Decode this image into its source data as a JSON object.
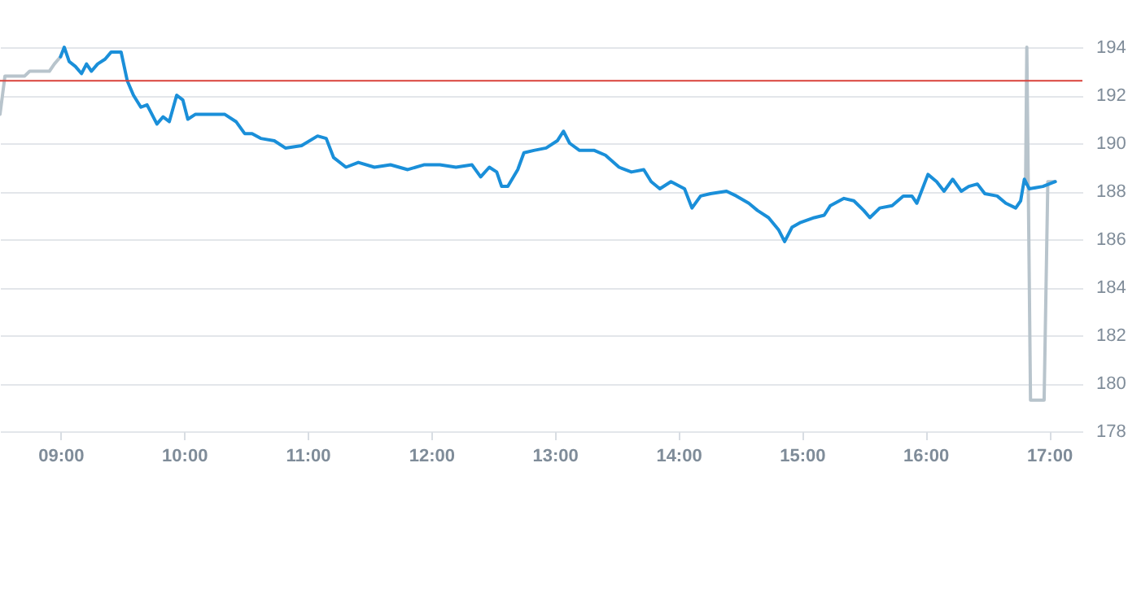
{
  "chart_data": {
    "type": "line",
    "xlim": [
      8.51,
      17.27
    ],
    "ylim": [
      178,
      194
    ],
    "xticks": [
      {
        "value": 9,
        "label": "09:00"
      },
      {
        "value": 10,
        "label": "10:00"
      },
      {
        "value": 11,
        "label": "11:00"
      },
      {
        "value": 12,
        "label": "12:00"
      },
      {
        "value": 13,
        "label": "13:00"
      },
      {
        "value": 14,
        "label": "14:00"
      },
      {
        "value": 15,
        "label": "15:00"
      },
      {
        "value": 16,
        "label": "16:00"
      },
      {
        "value": 17,
        "label": "17:00"
      }
    ],
    "yticks": [
      178,
      180,
      182,
      184,
      186,
      188,
      190,
      192,
      194
    ],
    "grid": "y",
    "marker": "none",
    "line_style": "solid",
    "ref_lines": [
      {
        "axis": "y",
        "value": 192.6,
        "color": "#d9413a"
      }
    ],
    "series": [
      {
        "color": "#b8c4cc",
        "x": [
          8.51,
          8.55,
          8.71,
          8.75,
          8.91,
          8.95,
          9.0
        ],
        "values": [
          191.2,
          192.8,
          192.8,
          193.0,
          193.0,
          193.3,
          193.6
        ]
      },
      {
        "color": "#b8c4cc",
        "x": [
          16.81,
          16.82,
          16.85,
          16.96,
          16.99,
          17.05
        ],
        "values": [
          188.3,
          194.0,
          179.3,
          179.3,
          188.4,
          188.4
        ]
      },
      {
        "color": "#1a8fd9",
        "x": [
          9.0,
          9.03,
          9.07,
          9.12,
          9.17,
          9.21,
          9.25,
          9.3,
          9.36,
          9.41,
          9.49,
          9.54,
          9.59,
          9.65,
          9.7,
          9.78,
          9.83,
          9.88,
          9.94,
          9.99,
          10.03,
          10.09,
          10.23,
          10.33,
          10.42,
          10.49,
          10.55,
          10.62,
          10.73,
          10.82,
          10.95,
          11.08,
          11.15,
          11.21,
          11.31,
          11.41,
          11.54,
          11.67,
          11.81,
          11.94,
          12.07,
          12.2,
          12.33,
          12.4,
          12.47,
          12.53,
          12.57,
          12.62,
          12.7,
          12.75,
          12.83,
          12.93,
          13.02,
          13.07,
          13.12,
          13.2,
          13.32,
          13.41,
          13.52,
          13.62,
          13.72,
          13.78,
          13.85,
          13.94,
          14.05,
          14.11,
          14.18,
          14.26,
          14.39,
          14.47,
          14.57,
          14.64,
          14.73,
          14.81,
          14.86,
          14.92,
          14.99,
          15.1,
          15.18,
          15.23,
          15.34,
          15.42,
          15.5,
          15.55,
          15.63,
          15.73,
          15.82,
          15.89,
          15.93,
          16.02,
          16.09,
          16.15,
          16.22,
          16.29,
          16.35,
          16.42,
          16.48,
          16.58,
          16.65,
          16.73,
          16.77,
          16.8,
          16.84,
          16.95,
          17.05
        ],
        "values": [
          193.6,
          194.0,
          193.4,
          193.2,
          192.9,
          193.3,
          193.0,
          193.3,
          193.5,
          193.8,
          193.8,
          192.6,
          192.0,
          191.5,
          191.6,
          190.8,
          191.1,
          190.9,
          192.0,
          191.8,
          191.0,
          191.2,
          191.2,
          191.2,
          190.9,
          190.4,
          190.4,
          190.2,
          190.1,
          189.8,
          189.9,
          190.3,
          190.2,
          189.4,
          189.0,
          189.2,
          189.0,
          189.1,
          188.9,
          189.1,
          189.1,
          189.0,
          189.1,
          188.6,
          189.0,
          188.8,
          188.2,
          188.2,
          188.9,
          189.6,
          189.7,
          189.8,
          190.1,
          190.5,
          190.0,
          189.7,
          189.7,
          189.5,
          189.0,
          188.8,
          188.9,
          188.4,
          188.1,
          188.4,
          188.1,
          187.3,
          187.8,
          187.9,
          188.0,
          187.8,
          187.5,
          187.2,
          186.9,
          186.4,
          185.9,
          186.5,
          186.7,
          186.9,
          187.0,
          187.4,
          187.7,
          187.6,
          187.2,
          186.9,
          187.3,
          187.4,
          187.8,
          187.8,
          187.5,
          188.7,
          188.4,
          188.0,
          188.5,
          188.0,
          188.2,
          188.3,
          187.9,
          187.8,
          187.5,
          187.3,
          187.6,
          188.5,
          188.1,
          188.2,
          188.4
        ]
      }
    ]
  }
}
